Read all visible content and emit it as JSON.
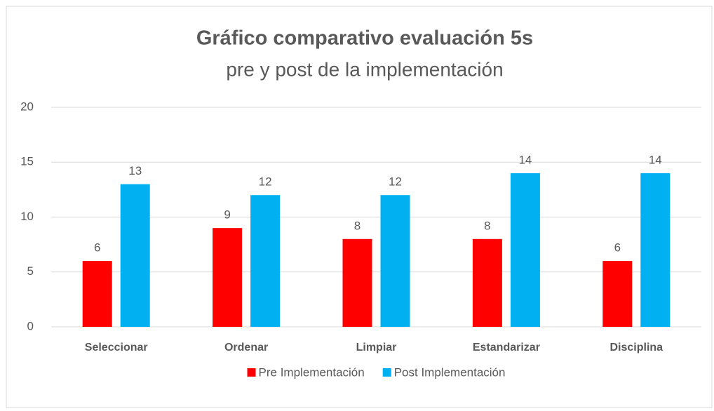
{
  "chart_data": {
    "type": "bar",
    "title": "Gráfico comparativo evaluación 5s",
    "subtitle": "pre y post de la implementación",
    "categories": [
      "Seleccionar",
      "Ordenar",
      "Limpiar",
      "Estandarizar",
      "Disciplina"
    ],
    "series": [
      {
        "name": "Pre Implementación",
        "color": "#ff0000",
        "values": [
          6,
          9,
          8,
          8,
          6
        ]
      },
      {
        "name": "Post Implementación",
        "color": "#00b0f0",
        "values": [
          13,
          12,
          12,
          14,
          14
        ]
      }
    ],
    "ylim": [
      0,
      20
    ],
    "yticks": [
      0,
      5,
      10,
      15,
      20
    ],
    "grid": true,
    "legend": "bottom"
  }
}
